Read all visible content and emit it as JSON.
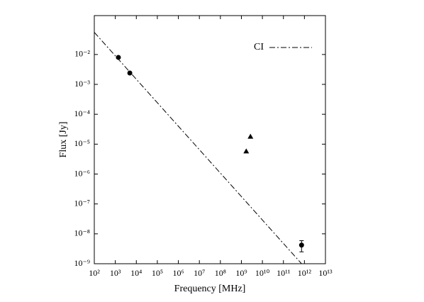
{
  "chart_data": {
    "type": "scatter",
    "x_label": "Frequency [MHz]",
    "y_label": "Flux [Jy]",
    "xlog": true,
    "ylog": true,
    "xlim": [
      100,
      10000000000000.0
    ],
    "ylim": [
      1e-09,
      0.2
    ],
    "xticks": [
      {
        "value": 100,
        "label": "10²"
      },
      {
        "value": 1000,
        "label": "10³"
      },
      {
        "value": 10000,
        "label": "10⁴"
      },
      {
        "value": 100000,
        "label": "10⁵"
      },
      {
        "value": 1000000,
        "label": "10⁶"
      },
      {
        "value": 10000000,
        "label": "10⁷"
      },
      {
        "value": 100000000,
        "label": "10⁸"
      },
      {
        "value": 1000000000,
        "label": "10⁹"
      },
      {
        "value": 10000000000,
        "label": "10¹⁰"
      },
      {
        "value": 100000000000,
        "label": "10¹¹"
      },
      {
        "value": 1000000000000,
        "label": "10¹²"
      },
      {
        "value": 10000000000000,
        "label": "10¹³"
      }
    ],
    "yticks": [
      {
        "value": 0.01,
        "label": "10⁻²"
      },
      {
        "value": 0.001,
        "label": "10⁻³"
      },
      {
        "value": 0.0001,
        "label": "10⁻⁴"
      },
      {
        "value": 1e-05,
        "label": "10⁻⁵"
      },
      {
        "value": 1e-06,
        "label": "10⁻⁶"
      },
      {
        "value": 1e-07,
        "label": "10⁻⁷"
      },
      {
        "value": 1e-08,
        "label": "10⁻⁸"
      },
      {
        "value": 1e-09,
        "label": "10⁻⁹"
      }
    ],
    "legend": "upper right",
    "series": [
      {
        "name": "CI",
        "style": "dashdot",
        "color": "#000000",
        "x": [
          100,
          730000000000
        ],
        "values": [
          0.055,
          1e-09
        ]
      },
      {
        "marker": "circle",
        "color": "#000000",
        "x": [
          1400,
          4900,
          730000000000
        ],
        "values": [
          0.008,
          0.0024,
          4.2e-09
        ],
        "errors": [
          null,
          null,
          1.7e-09
        ]
      },
      {
        "marker": "triangle",
        "color": "#000000",
        "x": [
          1700000000,
          2700000000
        ],
        "values": [
          5.8e-06,
          1.8e-05
        ]
      }
    ]
  }
}
